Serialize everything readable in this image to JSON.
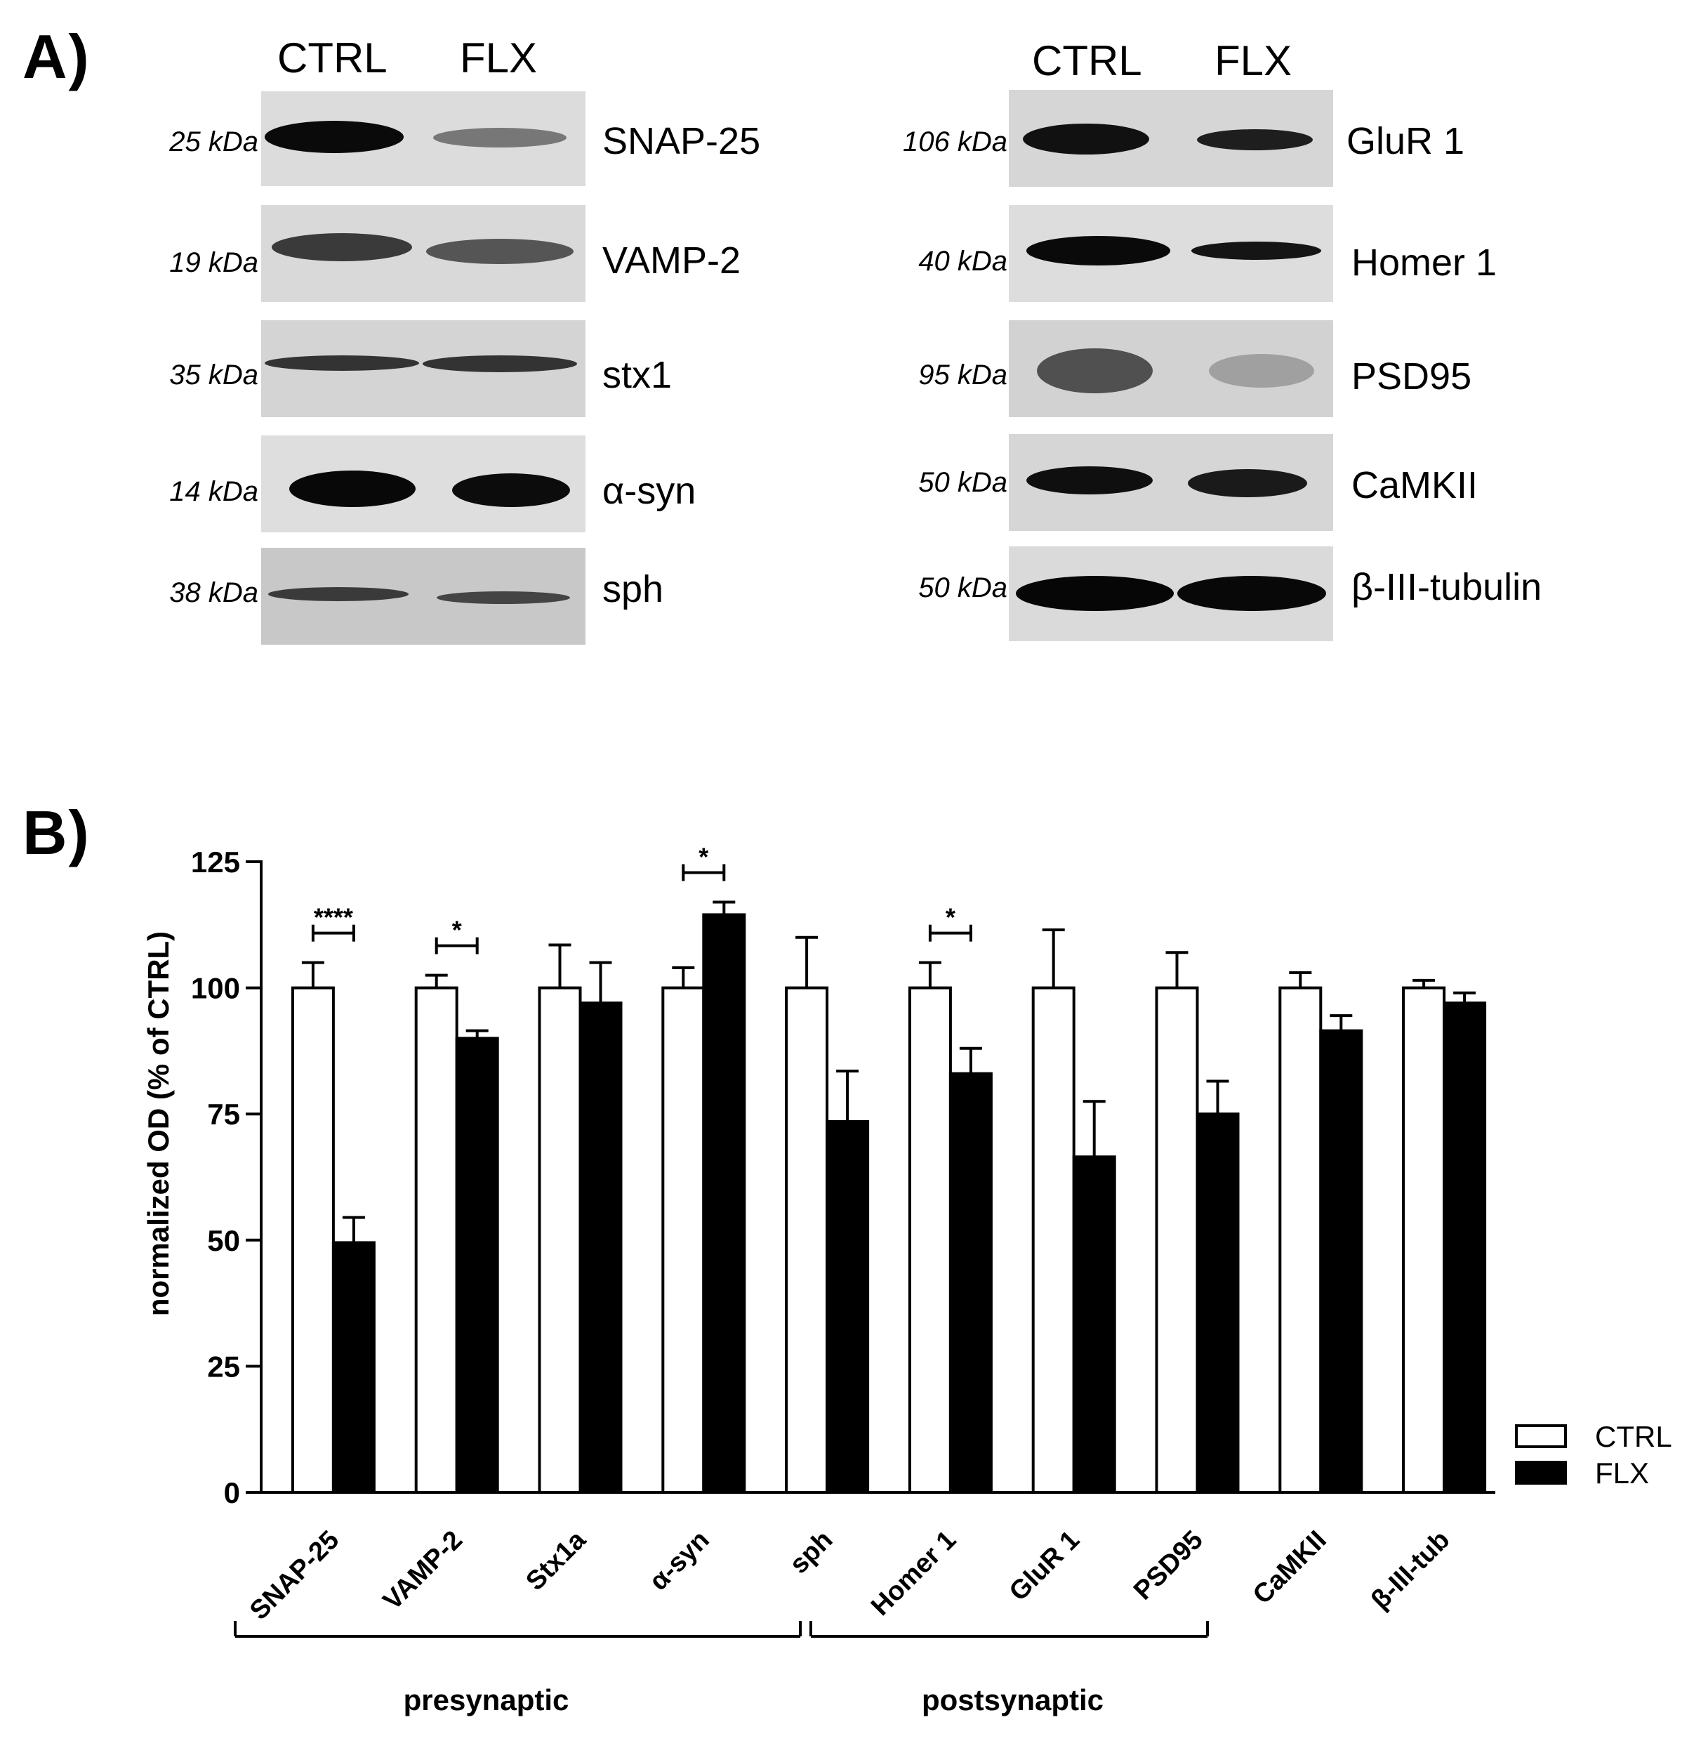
{
  "panel_a": {
    "label": "A)",
    "left": {
      "lanes": [
        "CTRL",
        "FLX"
      ],
      "blots": [
        {
          "kda": "25 kDa",
          "protein": "SNAP-25"
        },
        {
          "kda": "19 kDa",
          "protein": "VAMP-2"
        },
        {
          "kda": "35 kDa",
          "protein": "stx1"
        },
        {
          "kda": "14 kDa",
          "protein": "α-syn"
        },
        {
          "kda": "38 kDa",
          "protein": "sph"
        }
      ]
    },
    "right": {
      "lanes": [
        "CTRL",
        "FLX"
      ],
      "blots": [
        {
          "kda": "106 kDa",
          "protein": "GluR 1"
        },
        {
          "kda": "40 kDa",
          "protein": "Homer 1"
        },
        {
          "kda": "95 kDa",
          "protein": "PSD95"
        },
        {
          "kda": "50 kDa",
          "protein": "CaMKII"
        },
        {
          "kda": "50 kDa",
          "protein": "β-III-tubulin"
        }
      ]
    }
  },
  "panel_b": {
    "label": "B)",
    "groups": [
      {
        "label": "presynaptic"
      },
      {
        "label": "postsynaptic"
      }
    ]
  },
  "chart_data": {
    "type": "bar",
    "title": "",
    "ylabel": "normalized OD (% of CTRL)",
    "xlabel": "",
    "ylim": [
      0,
      125
    ],
    "yticks": [
      0,
      25,
      50,
      75,
      100,
      125
    ],
    "categories": [
      "SNAP-25",
      "VAMP-2",
      "Stx1a",
      "α-syn",
      "sph",
      "Homer 1",
      "GluR 1",
      "PSD95",
      "CaMKII",
      "β-III-tub"
    ],
    "series": [
      {
        "name": "CTRL",
        "color": "#ffffff",
        "values": [
          100,
          100,
          100,
          100,
          100,
          100,
          100,
          100,
          100,
          100
        ],
        "errors": [
          5,
          2.5,
          8.5,
          4,
          10,
          5,
          11.5,
          7,
          3,
          1.5
        ]
      },
      {
        "name": "FLX",
        "color": "#000000",
        "values": [
          49.5,
          90,
          97,
          114.5,
          73.5,
          83,
          66.5,
          75,
          91.5,
          97
        ],
        "errors": [
          5,
          1.5,
          8,
          2.5,
          10,
          5,
          11,
          6.5,
          3,
          2
        ]
      }
    ],
    "significance": [
      {
        "category": "SNAP-25",
        "label": "****"
      },
      {
        "category": "VAMP-2",
        "label": "*"
      },
      {
        "category": "α-syn",
        "label": "*"
      },
      {
        "category": "Homer 1",
        "label": "*"
      }
    ],
    "legend": {
      "position": "bottom-right",
      "entries": [
        "CTRL",
        "FLX"
      ]
    }
  }
}
